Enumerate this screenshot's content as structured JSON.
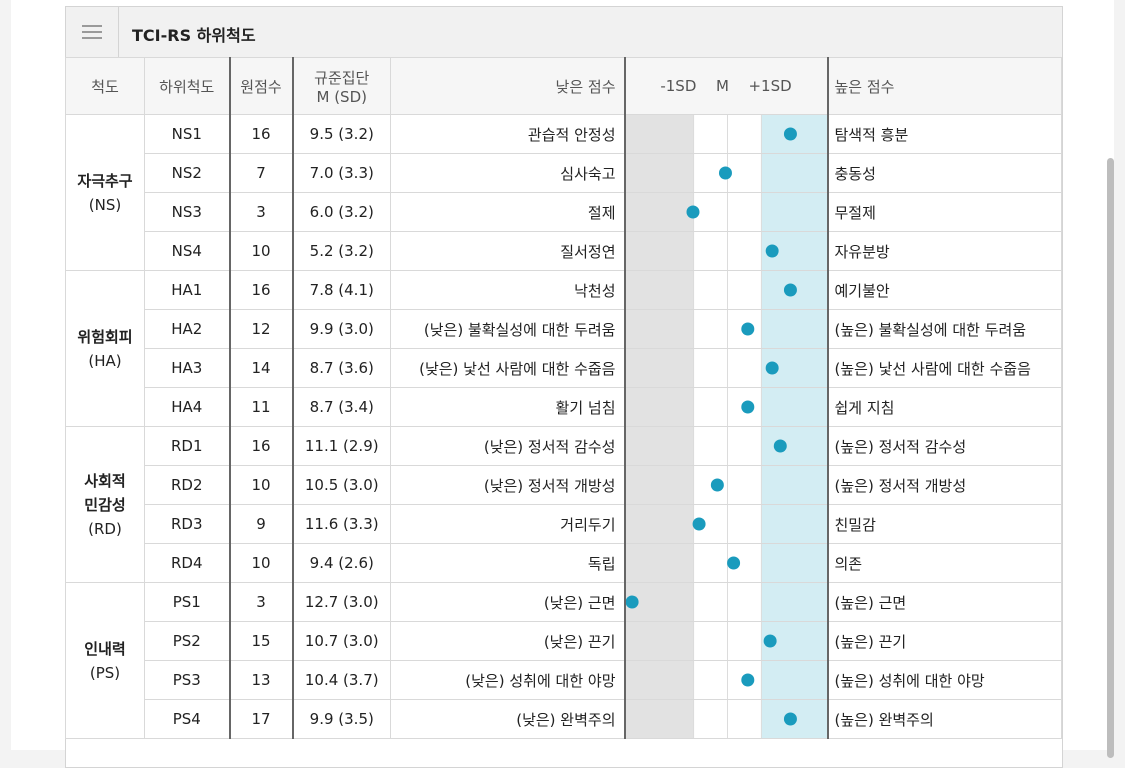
{
  "header": {
    "title": "TCI-RS 하위척도"
  },
  "columns": {
    "scale": "척도",
    "subscale": "하위척도",
    "raw": "원점수",
    "norm_line1": "규준집단",
    "norm_line2": "M (SD)",
    "low": "낮은 점수",
    "sd_minus": "-1SD",
    "sd_mean": "M",
    "sd_plus": "+1SD",
    "high": "높은 점수"
  },
  "plot_axis": {
    "min": 0,
    "max": 10,
    "minus1sd": 3.33,
    "mean": 5,
    "plus1sd": 6.67
  },
  "colors": {
    "dot": "#1a9bbd",
    "low_band": "#e2e2e2",
    "high_band": "#d3edf3"
  },
  "groups": [
    {
      "name": "자극추구",
      "abbr": "(NS)",
      "rows": [
        {
          "code": "NS1",
          "raw": "16",
          "norm": "9.5 (3.2)",
          "low": "관습적 안정성",
          "high": "탐색적 흥분",
          "t": 8.1
        },
        {
          "code": "NS2",
          "raw": "7",
          "norm": "7.0 (3.3)",
          "low": "심사숙고",
          "high": "충동성",
          "t": 4.9
        },
        {
          "code": "NS3",
          "raw": "3",
          "norm": "6.0 (3.2)",
          "low": "절제",
          "high": "무절제",
          "t": 3.3
        },
        {
          "code": "NS4",
          "raw": "10",
          "norm": "5.2 (3.2)",
          "low": "질서정연",
          "high": "자유분방",
          "t": 7.2
        }
      ]
    },
    {
      "name": "위험회피",
      "abbr": "(HA)",
      "rows": [
        {
          "code": "HA1",
          "raw": "16",
          "norm": "7.8 (4.1)",
          "low": "낙천성",
          "high": "예기불안",
          "t": 8.1
        },
        {
          "code": "HA2",
          "raw": "12",
          "norm": "9.9 (3.0)",
          "low": "(낮은) 불확실성에 대한 두려움",
          "high": "(높은) 불확실성에 대한 두려움",
          "t": 6.0
        },
        {
          "code": "HA3",
          "raw": "14",
          "norm": "8.7 (3.6)",
          "low": "(낮은) 낯선 사람에 대한 수줍음",
          "high": "(높은) 낯선 사람에 대한 수줍음",
          "t": 7.2
        },
        {
          "code": "HA4",
          "raw": "11",
          "norm": "8.7 (3.4)",
          "low": "활기 넘침",
          "high": "쉽게 지침",
          "t": 6.0
        }
      ]
    },
    {
      "name": "사회적 민감성",
      "name_lines": [
        "사회적",
        "민감성"
      ],
      "abbr": "(RD)",
      "rows": [
        {
          "code": "RD1",
          "raw": "16",
          "norm": "11.1 (2.9)",
          "low": "(낮은) 정서적 감수성",
          "high": "(높은) 정서적 감수성",
          "t": 7.6
        },
        {
          "code": "RD2",
          "raw": "10",
          "norm": "10.5 (3.0)",
          "low": "(낮은) 정서적 개방성",
          "high": "(높은) 정서적 개방성",
          "t": 4.5
        },
        {
          "code": "RD3",
          "raw": "9",
          "norm": "11.6 (3.3)",
          "low": "거리두기",
          "high": "친밀감",
          "t": 3.6
        },
        {
          "code": "RD4",
          "raw": "10",
          "norm": "9.4 (2.6)",
          "low": "독립",
          "high": "의존",
          "t": 5.3
        }
      ]
    },
    {
      "name": "인내력",
      "abbr": "(PS)",
      "rows": [
        {
          "code": "PS1",
          "raw": "3",
          "norm": "12.7 (3.0)",
          "low": "(낮은) 근면",
          "high": "(높은) 근면",
          "t": 0.3
        },
        {
          "code": "PS2",
          "raw": "15",
          "norm": "10.7 (3.0)",
          "low": "(낮은) 끈기",
          "high": "(높은) 끈기",
          "t": 7.1
        },
        {
          "code": "PS3",
          "raw": "13",
          "norm": "10.4 (3.7)",
          "low": "(낮은) 성취에 대한 야망",
          "high": "(높은) 성취에 대한 야망",
          "t": 6.0
        },
        {
          "code": "PS4",
          "raw": "17",
          "norm": "9.9 (3.5)",
          "low": "(낮은) 완벽주의",
          "high": "(높은) 완벽주의",
          "t": 8.1
        }
      ]
    }
  ]
}
